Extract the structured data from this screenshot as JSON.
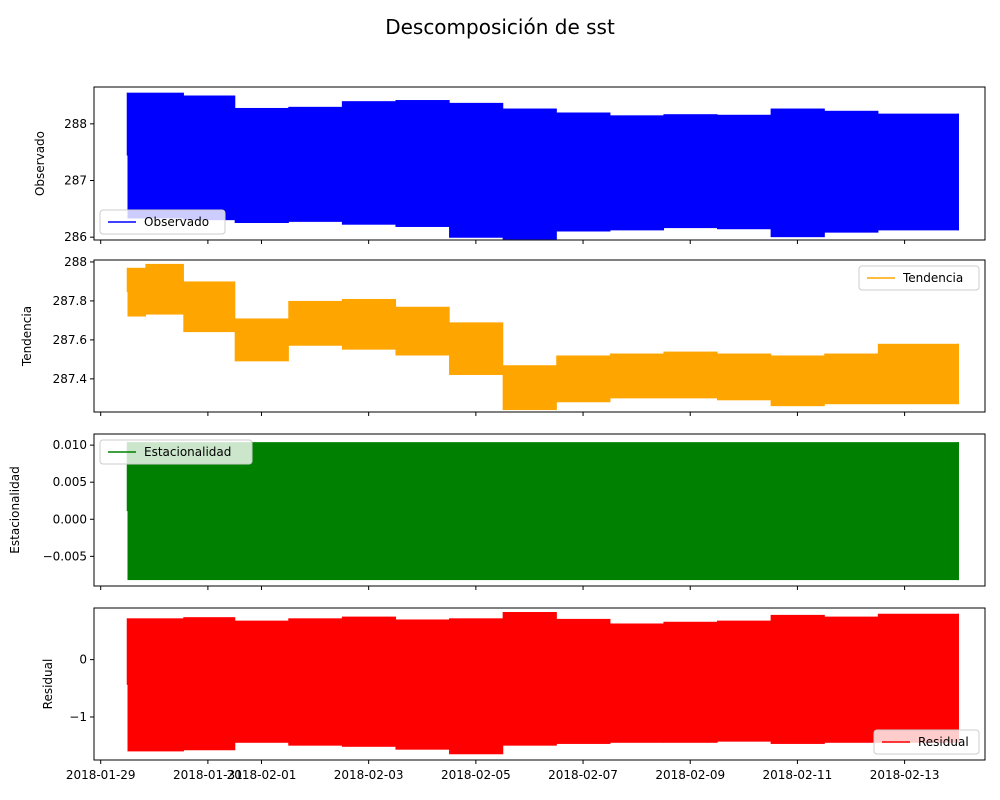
{
  "chart_data": {
    "type": "line",
    "title": "Descomposición de sst",
    "x_tick_labels": [
      "2018-01-29",
      "2018-01-31",
      "2018-02-01",
      "2018-02-03",
      "2018-02-05",
      "2018-02-07",
      "2018-02-09",
      "2018-02-11",
      "2018-02-13"
    ],
    "x_range": [
      "2018-01-28T21:00",
      "2018-02-14T12:00"
    ],
    "data_range": [
      "2018-01-29T12:00",
      "2018-02-14T00:00"
    ],
    "panels": [
      {
        "ylabel": "Observado",
        "series_name": "Observado",
        "color": "#0000ff",
        "legend_loc": "lower-left",
        "ylim": [
          285.95,
          288.65
        ],
        "yticks": [
          286,
          287,
          288
        ],
        "segments": [
          {
            "start": "2018-01-29T12:00",
            "end": "2018-01-30T13:00",
            "low": 286.33,
            "high": 288.55
          },
          {
            "start": "2018-01-30T13:00",
            "end": "2018-01-31T12:00",
            "low": 286.3,
            "high": 288.5
          },
          {
            "start": "2018-01-31T12:00",
            "end": "2018-02-01T12:00",
            "low": 286.25,
            "high": 288.28
          },
          {
            "start": "2018-02-01T12:00",
            "end": "2018-02-02T12:00",
            "low": 286.27,
            "high": 288.3
          },
          {
            "start": "2018-02-02T12:00",
            "end": "2018-02-03T12:00",
            "low": 286.22,
            "high": 288.4
          },
          {
            "start": "2018-02-03T12:00",
            "end": "2018-02-04T12:00",
            "low": 286.18,
            "high": 288.42
          },
          {
            "start": "2018-02-04T12:00",
            "end": "2018-02-05T12:00",
            "low": 285.99,
            "high": 288.37
          },
          {
            "start": "2018-02-05T12:00",
            "end": "2018-02-06T12:00",
            "low": 285.96,
            "high": 288.27
          },
          {
            "start": "2018-02-06T12:00",
            "end": "2018-02-07T12:00",
            "low": 286.1,
            "high": 288.2
          },
          {
            "start": "2018-02-07T12:00",
            "end": "2018-02-08T12:00",
            "low": 286.12,
            "high": 288.15
          },
          {
            "start": "2018-02-08T12:00",
            "end": "2018-02-09T12:00",
            "low": 286.16,
            "high": 288.17
          },
          {
            "start": "2018-02-09T12:00",
            "end": "2018-02-10T12:00",
            "low": 286.14,
            "high": 288.16
          },
          {
            "start": "2018-02-10T12:00",
            "end": "2018-02-11T12:00",
            "low": 286.0,
            "high": 288.27
          },
          {
            "start": "2018-02-11T12:00",
            "end": "2018-02-12T12:00",
            "low": 286.08,
            "high": 288.23
          },
          {
            "start": "2018-02-12T12:00",
            "end": "2018-02-14T00:00",
            "low": 286.12,
            "high": 288.18
          }
        ]
      },
      {
        "ylabel": "Tendencia",
        "series_name": "Tendencia",
        "color": "#ffa500",
        "legend_loc": "upper-right",
        "ylim": [
          287.23,
          288.01
        ],
        "yticks": [
          287.4,
          287.6,
          287.8,
          288.0
        ],
        "segments": [
          {
            "start": "2018-01-29T12:00",
            "end": "2018-01-29T20:00",
            "low": 287.72,
            "high": 287.97
          },
          {
            "start": "2018-01-29T20:00",
            "end": "2018-01-30T13:00",
            "low": 287.73,
            "high": 287.99
          },
          {
            "start": "2018-01-30T13:00",
            "end": "2018-01-31T12:00",
            "low": 287.64,
            "high": 287.9
          },
          {
            "start": "2018-01-31T12:00",
            "end": "2018-02-01T12:00",
            "low": 287.49,
            "high": 287.71
          },
          {
            "start": "2018-02-01T12:00",
            "end": "2018-02-02T12:00",
            "low": 287.57,
            "high": 287.8
          },
          {
            "start": "2018-02-02T12:00",
            "end": "2018-02-03T12:00",
            "low": 287.55,
            "high": 287.81
          },
          {
            "start": "2018-02-03T12:00",
            "end": "2018-02-04T12:00",
            "low": 287.52,
            "high": 287.77
          },
          {
            "start": "2018-02-04T12:00",
            "end": "2018-02-05T12:00",
            "low": 287.42,
            "high": 287.69
          },
          {
            "start": "2018-02-05T12:00",
            "end": "2018-02-06T12:00",
            "low": 287.24,
            "high": 287.47
          },
          {
            "start": "2018-02-06T12:00",
            "end": "2018-02-07T12:00",
            "low": 287.28,
            "high": 287.52
          },
          {
            "start": "2018-02-07T12:00",
            "end": "2018-02-08T12:00",
            "low": 287.3,
            "high": 287.53
          },
          {
            "start": "2018-02-08T12:00",
            "end": "2018-02-09T12:00",
            "low": 287.3,
            "high": 287.54
          },
          {
            "start": "2018-02-09T12:00",
            "end": "2018-02-10T12:00",
            "low": 287.29,
            "high": 287.53
          },
          {
            "start": "2018-02-10T12:00",
            "end": "2018-02-11T12:00",
            "low": 287.26,
            "high": 287.52
          },
          {
            "start": "2018-02-11T12:00",
            "end": "2018-02-12T12:00",
            "low": 287.27,
            "high": 287.53
          },
          {
            "start": "2018-02-12T12:00",
            "end": "2018-02-14T00:00",
            "low": 287.27,
            "high": 287.58
          }
        ]
      },
      {
        "ylabel": "Estacionalidad",
        "series_name": "Estacionalidad",
        "color": "#008000",
        "legend_loc": "upper-left",
        "ylim": [
          -0.009,
          0.0115
        ],
        "yticks": [
          -0.005,
          0.0,
          0.005,
          0.01
        ],
        "tick_format": "fixed3",
        "segments": [
          {
            "start": "2018-01-29T12:00",
            "end": "2018-02-14T00:00",
            "low": -0.0082,
            "high": 0.0104
          }
        ]
      },
      {
        "ylabel": "Residual",
        "series_name": "Residual",
        "color": "#ff0000",
        "legend_loc": "lower-right",
        "ylim": [
          -1.75,
          0.9
        ],
        "yticks": [
          -1,
          0
        ],
        "segments": [
          {
            "start": "2018-01-29T12:00",
            "end": "2018-01-30T13:00",
            "low": -1.6,
            "high": 0.72
          },
          {
            "start": "2018-01-30T13:00",
            "end": "2018-01-31T12:00",
            "low": -1.58,
            "high": 0.74
          },
          {
            "start": "2018-01-31T12:00",
            "end": "2018-02-01T12:00",
            "low": -1.45,
            "high": 0.68
          },
          {
            "start": "2018-02-01T12:00",
            "end": "2018-02-02T12:00",
            "low": -1.5,
            "high": 0.72
          },
          {
            "start": "2018-02-02T12:00",
            "end": "2018-02-03T12:00",
            "low": -1.52,
            "high": 0.75
          },
          {
            "start": "2018-02-03T12:00",
            "end": "2018-02-04T12:00",
            "low": -1.57,
            "high": 0.7
          },
          {
            "start": "2018-02-04T12:00",
            "end": "2018-02-05T12:00",
            "low": -1.65,
            "high": 0.72
          },
          {
            "start": "2018-02-05T12:00",
            "end": "2018-02-06T12:00",
            "low": -1.5,
            "high": 0.83
          },
          {
            "start": "2018-02-06T12:00",
            "end": "2018-02-07T12:00",
            "low": -1.47,
            "high": 0.71
          },
          {
            "start": "2018-02-07T12:00",
            "end": "2018-02-08T12:00",
            "low": -1.45,
            "high": 0.63
          },
          {
            "start": "2018-02-08T12:00",
            "end": "2018-02-09T12:00",
            "low": -1.45,
            "high": 0.66
          },
          {
            "start": "2018-02-09T12:00",
            "end": "2018-02-10T12:00",
            "low": -1.43,
            "high": 0.68
          },
          {
            "start": "2018-02-10T12:00",
            "end": "2018-02-11T12:00",
            "low": -1.47,
            "high": 0.78
          },
          {
            "start": "2018-02-11T12:00",
            "end": "2018-02-12T12:00",
            "low": -1.45,
            "high": 0.75
          },
          {
            "start": "2018-02-12T12:00",
            "end": "2018-02-14T00:00",
            "low": -1.45,
            "high": 0.8
          }
        ]
      }
    ]
  }
}
